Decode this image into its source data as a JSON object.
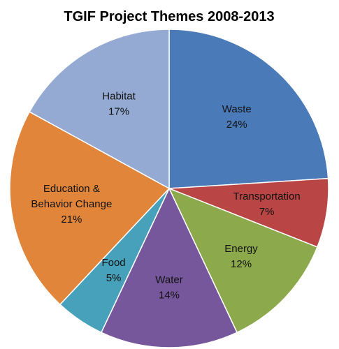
{
  "chart_data": {
    "type": "pie",
    "title": "TGIF Project Themes 2008-2013",
    "slices": [
      {
        "label": "Waste",
        "value": 24,
        "value_label": "24%",
        "color": "#4a7ab7"
      },
      {
        "label": "Transportation",
        "value": 7,
        "value_label": "7%",
        "color": "#b94645"
      },
      {
        "label": "Energy",
        "value": 12,
        "value_label": "12%",
        "color": "#8caa4c"
      },
      {
        "label": "Water",
        "value": 14,
        "value_label": "14%",
        "color": "#77579c"
      },
      {
        "label": "Food",
        "value": 5,
        "value_label": "5%",
        "color": "#47a1bb"
      },
      {
        "label": "Education &\nBehavior Change",
        "value": 21,
        "value_label": "21%",
        "color": "#e0853a"
      },
      {
        "label": "Habitat",
        "value": 17,
        "value_label": "17%",
        "color": "#94aad3"
      }
    ],
    "legend": "none"
  }
}
